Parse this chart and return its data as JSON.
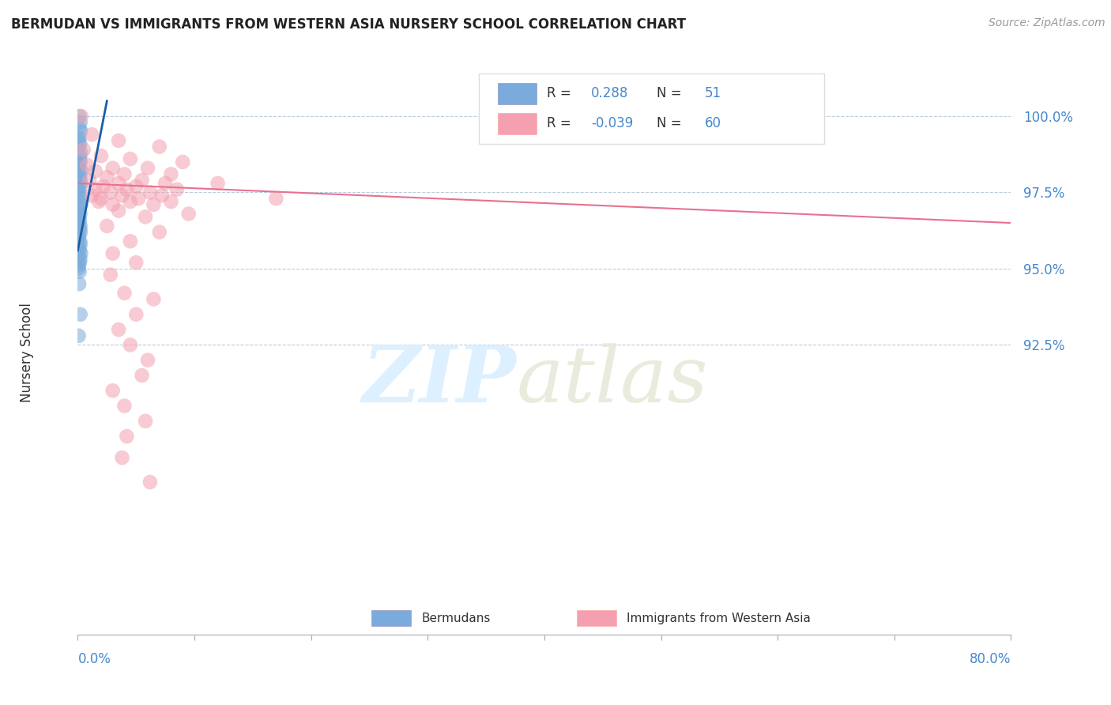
{
  "title": "BERMUDAN VS IMMIGRANTS FROM WESTERN ASIA NURSERY SCHOOL CORRELATION CHART",
  "source": "Source: ZipAtlas.com",
  "ylabel": "Nursery School",
  "yticks": [
    92.5,
    95.0,
    97.5,
    100.0
  ],
  "ytick_labels": [
    "92.5%",
    "95.0%",
    "97.5%",
    "100.0%"
  ],
  "xlim": [
    0.0,
    80.0
  ],
  "ylim": [
    83.0,
    101.5
  ],
  "blue_R": 0.288,
  "blue_N": 51,
  "pink_R": -0.039,
  "pink_N": 60,
  "blue_color": "#7AABDC",
  "pink_color": "#F4A0B0",
  "trendline_blue": "#1A5EA8",
  "trendline_pink": "#E87090",
  "watermark_zip": "ZIP",
  "watermark_atlas": "atlas",
  "legend_label_blue": "Bermudans",
  "legend_label_pink": "Immigrants from Western Asia",
  "blue_scatter": [
    [
      0.15,
      100.0
    ],
    [
      0.22,
      99.8
    ],
    [
      0.18,
      99.6
    ],
    [
      0.25,
      99.5
    ],
    [
      0.12,
      99.3
    ],
    [
      0.08,
      99.2
    ],
    [
      0.2,
      99.1
    ],
    [
      0.1,
      99.0
    ],
    [
      0.28,
      98.8
    ],
    [
      0.15,
      98.7
    ],
    [
      0.18,
      98.6
    ],
    [
      0.22,
      98.5
    ],
    [
      0.08,
      98.4
    ],
    [
      0.12,
      98.3
    ],
    [
      0.3,
      98.2
    ],
    [
      0.16,
      98.1
    ],
    [
      0.14,
      98.0
    ],
    [
      0.24,
      97.9
    ],
    [
      0.19,
      97.8
    ],
    [
      0.22,
      97.7
    ],
    [
      0.11,
      97.6
    ],
    [
      0.09,
      97.5
    ],
    [
      0.18,
      97.4
    ],
    [
      0.23,
      97.3
    ],
    [
      0.13,
      97.2
    ],
    [
      0.27,
      97.1
    ],
    [
      0.16,
      97.0
    ],
    [
      0.12,
      96.9
    ],
    [
      0.21,
      96.8
    ],
    [
      0.08,
      96.7
    ],
    [
      0.17,
      96.6
    ],
    [
      0.13,
      96.5
    ],
    [
      0.22,
      96.4
    ],
    [
      0.18,
      96.3
    ],
    [
      0.25,
      96.2
    ],
    [
      0.1,
      96.1
    ],
    [
      0.07,
      96.0
    ],
    [
      0.19,
      95.9
    ],
    [
      0.24,
      95.8
    ],
    [
      0.11,
      95.7
    ],
    [
      0.16,
      95.6
    ],
    [
      0.28,
      95.5
    ],
    [
      0.13,
      95.4
    ],
    [
      0.21,
      95.3
    ],
    [
      0.17,
      95.2
    ],
    [
      0.09,
      95.1
    ],
    [
      0.06,
      95.0
    ],
    [
      0.15,
      94.9
    ],
    [
      0.12,
      94.5
    ],
    [
      0.22,
      93.5
    ],
    [
      0.08,
      92.8
    ]
  ],
  "pink_scatter": [
    [
      0.3,
      100.0
    ],
    [
      1.2,
      99.4
    ],
    [
      3.5,
      99.2
    ],
    [
      7.0,
      99.0
    ],
    [
      0.5,
      98.9
    ],
    [
      2.0,
      98.7
    ],
    [
      4.5,
      98.6
    ],
    [
      9.0,
      98.5
    ],
    [
      0.8,
      98.4
    ],
    [
      3.0,
      98.3
    ],
    [
      6.0,
      98.3
    ],
    [
      1.5,
      98.2
    ],
    [
      4.0,
      98.1
    ],
    [
      8.0,
      98.1
    ],
    [
      2.5,
      98.0
    ],
    [
      5.5,
      97.9
    ],
    [
      1.0,
      97.9
    ],
    [
      3.5,
      97.8
    ],
    [
      7.5,
      97.8
    ],
    [
      2.2,
      97.7
    ],
    [
      5.0,
      97.7
    ],
    [
      1.5,
      97.6
    ],
    [
      4.2,
      97.6
    ],
    [
      8.5,
      97.6
    ],
    [
      2.8,
      97.5
    ],
    [
      6.2,
      97.5
    ],
    [
      1.2,
      97.4
    ],
    [
      3.8,
      97.4
    ],
    [
      7.2,
      97.4
    ],
    [
      2.0,
      97.3
    ],
    [
      5.2,
      97.3
    ],
    [
      1.8,
      97.2
    ],
    [
      4.5,
      97.2
    ],
    [
      8.0,
      97.2
    ],
    [
      3.0,
      97.1
    ],
    [
      6.5,
      97.1
    ],
    [
      3.5,
      96.9
    ],
    [
      5.8,
      96.7
    ],
    [
      2.5,
      96.4
    ],
    [
      7.0,
      96.2
    ],
    [
      4.5,
      95.9
    ],
    [
      3.0,
      95.5
    ],
    [
      5.0,
      95.2
    ],
    [
      2.8,
      94.8
    ],
    [
      4.0,
      94.2
    ],
    [
      6.5,
      94.0
    ],
    [
      3.5,
      93.0
    ],
    [
      4.5,
      92.5
    ],
    [
      6.0,
      92.0
    ],
    [
      5.5,
      91.5
    ],
    [
      3.0,
      91.0
    ],
    [
      4.0,
      90.5
    ],
    [
      5.8,
      90.0
    ],
    [
      4.2,
      89.5
    ],
    [
      3.8,
      88.8
    ],
    [
      6.2,
      88.0
    ],
    [
      17.0,
      97.3
    ],
    [
      12.0,
      97.8
    ],
    [
      5.0,
      93.5
    ],
    [
      9.5,
      96.8
    ]
  ],
  "pink_trend_x0": 0.0,
  "pink_trend_y0": 97.8,
  "pink_trend_x1": 80.0,
  "pink_trend_y1": 96.5,
  "blue_trend_x0": 0.0,
  "blue_trend_y0": 95.6,
  "blue_trend_x1": 2.5,
  "blue_trend_y1": 100.5
}
